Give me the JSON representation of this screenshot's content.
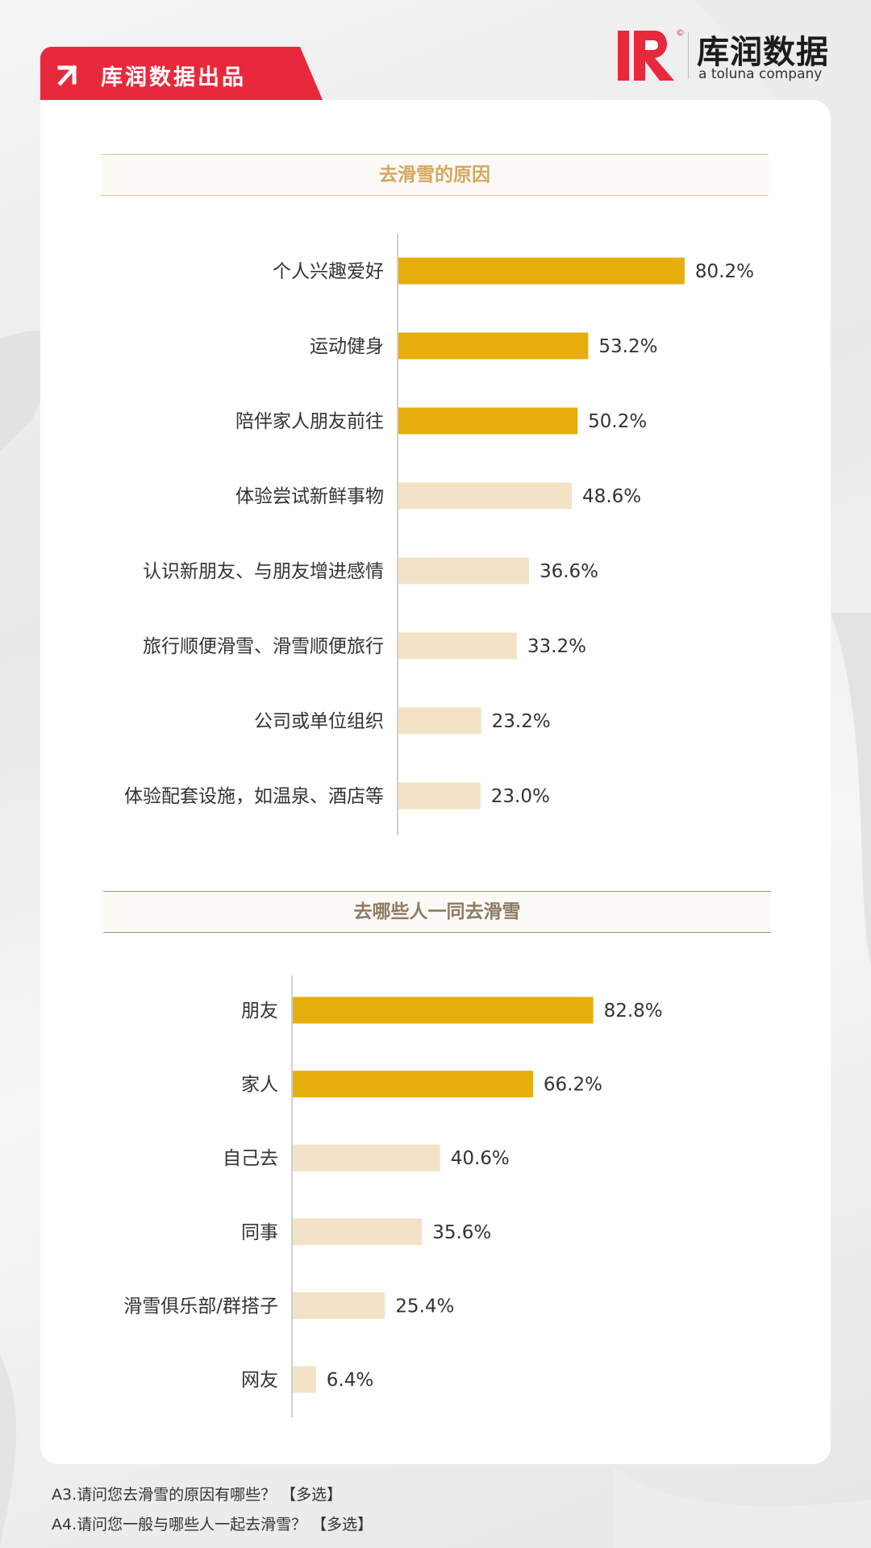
{
  "header": {
    "badge_text": "库润数据出品",
    "logo_cn": "库润数据",
    "logo_en": "a toluna company",
    "brand_color": "#e8293c",
    "badge_icon": "arrow-up-left-icon"
  },
  "chart_data": [
    {
      "type": "bar",
      "orientation": "horizontal",
      "title": "去滑雪的原因",
      "categories": [
        "个人兴趣爱好",
        "运动健身",
        "陪伴家人朋友前往",
        "体验尝试新鲜事物",
        "认识新朋友、与朋友增进感情",
        "旅行顺便滑雪、滑雪顺便旅行",
        "公司或单位组织",
        "体验配套设施，如温泉、酒店等"
      ],
      "values": [
        80.2,
        53.2,
        50.2,
        48.6,
        36.6,
        33.2,
        23.2,
        23.0
      ],
      "labels": [
        "80.2%",
        "53.2%",
        "50.2%",
        "48.6%",
        "36.6%",
        "33.2%",
        "23.2%",
        "23.0%"
      ],
      "highlight_top": 3,
      "xlim": [
        0,
        100
      ],
      "colors": {
        "highlight": "#e6ad0c",
        "normal": "#f3e3c6"
      }
    },
    {
      "type": "bar",
      "orientation": "horizontal",
      "title": "去哪些人一同去滑雪",
      "categories": [
        "朋友",
        "家人",
        "自己去",
        "同事",
        "滑雪俱乐部/群搭子",
        "网友"
      ],
      "values": [
        82.8,
        66.2,
        40.6,
        35.6,
        25.4,
        6.4
      ],
      "labels": [
        "82.8%",
        "66.2%",
        "40.6%",
        "35.6%",
        "25.4%",
        "6.4%"
      ],
      "highlight_top": 2,
      "xlim": [
        0,
        100
      ],
      "colors": {
        "highlight": "#e6ad0c",
        "normal": "#f3e3c6"
      }
    }
  ],
  "footnotes": {
    "q1": "A3.请问您去滑雪的原因有哪些？ 【多选】",
    "q2": "A4.请问您一般与哪些人一起去滑雪？ 【多选】"
  }
}
